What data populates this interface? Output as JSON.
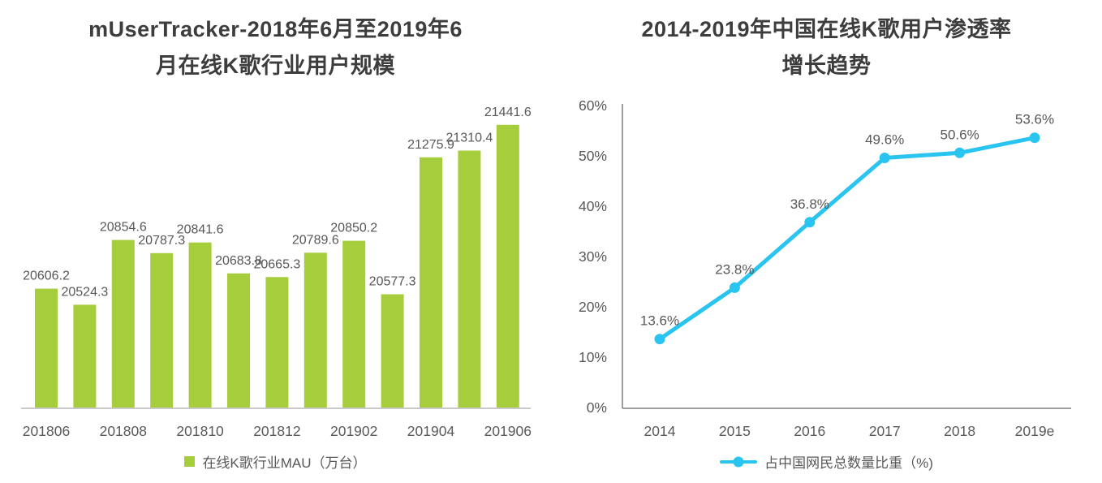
{
  "chart_data": [
    {
      "type": "bar",
      "title": "mUserTracker-2018年6月至2019年6月在线K歌行业用户规模",
      "title_lines": [
        "mUserTracker-2018年6月至2019年6",
        "月在线K歌行业用户规模"
      ],
      "values": [
        20606.2,
        20524.3,
        20854.6,
        20787.3,
        20841.6,
        20683.8,
        20665.3,
        20789.6,
        20850.2,
        20577.3,
        21275.9,
        21310.4,
        21441.6
      ],
      "value_labels": [
        "20606.2",
        "20524.3",
        "20854.6",
        "20787.3",
        "20841.6",
        "20683.8",
        "20665.3",
        "20789.6",
        "20850.2",
        "20577.3",
        "21275.9",
        "21310.4",
        "21441.6"
      ],
      "x_tick_labels": [
        "201806",
        "201808",
        "201810",
        "201812",
        "201902",
        "201904",
        "201906"
      ],
      "x_tick_every": 2,
      "legend": [
        "在线K歌行业MAU（万台）"
      ],
      "legend_position": "bottom",
      "bar_color": "#a6cd3b",
      "label_color": "#595757",
      "tick_color": "#595959",
      "axis_color": "#c9c9c9",
      "ylim": [
        20000,
        21540
      ],
      "y_axis_visible": false,
      "grid": false
    },
    {
      "type": "line",
      "title": "2014-2019年中国在线K歌用户渗透率增长趋势",
      "title_lines": [
        "2014-2019年中国在线K歌用户渗透率",
        "增长趋势"
      ],
      "categories": [
        "2014",
        "2015",
        "2016",
        "2017",
        "2018",
        "2019e"
      ],
      "values": [
        13.6,
        23.8,
        36.8,
        49.6,
        50.6,
        53.6
      ],
      "point_labels": [
        "13.6%",
        "23.8%",
        "36.8%",
        "49.6%",
        "50.6%",
        "53.6%"
      ],
      "y_ticks": [
        "0%",
        "10%",
        "20%",
        "30%",
        "40%",
        "50%",
        "60%"
      ],
      "ylim": [
        0,
        60
      ],
      "legend": [
        "占中国网民总数量比重（%)"
      ],
      "legend_position": "bottom",
      "line_color": "#29c4f0",
      "label_color": "#595757",
      "tick_color": "#595959",
      "axis_color": "#7f7f7f",
      "grid": false
    }
  ]
}
